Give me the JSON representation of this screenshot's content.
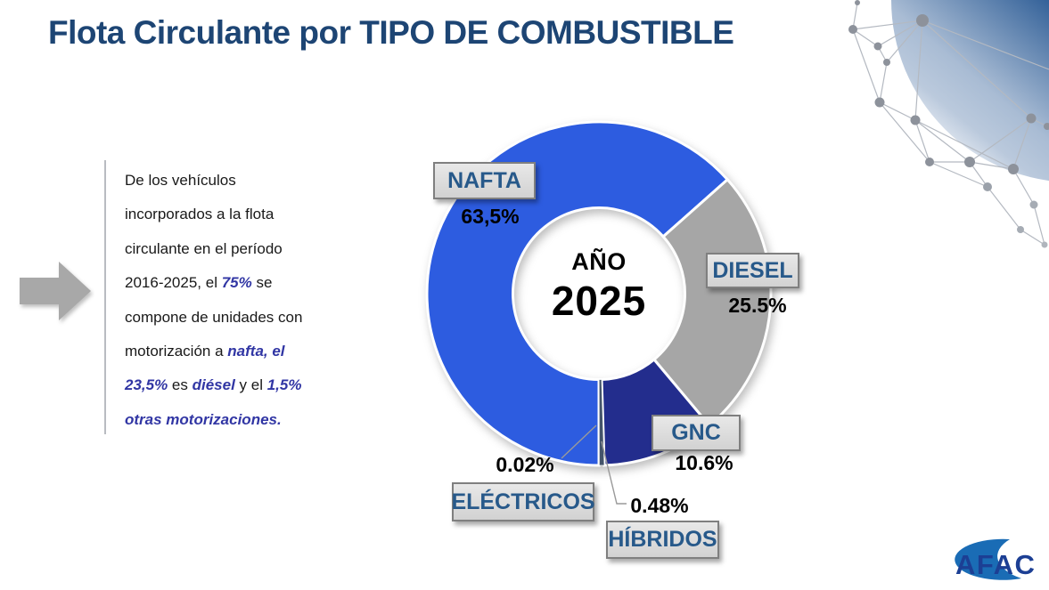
{
  "title": "Flota Circulante por TIPO DE COMBUSTIBLE",
  "note": {
    "runs": [
      {
        "t": "De los vehículos",
        "b": 0,
        "br": 1
      },
      {
        "t": "incorporados a la flota",
        "b": 0,
        "br": 1
      },
      {
        "t": "circulante en el período",
        "b": 0,
        "br": 1
      },
      {
        "t": "2016-2025, el ",
        "b": 0
      },
      {
        "t": "75%",
        "b": 1
      },
      {
        "t": " se",
        "b": 0,
        "br": 1
      },
      {
        "t": "compone de unidades con",
        "b": 0,
        "br": 1
      },
      {
        "t": "motorización a ",
        "b": 0
      },
      {
        "t": "nafta, el",
        "b": 1,
        "br": 1
      },
      {
        "t": "23,5%",
        "b": 1
      },
      {
        "t": " es ",
        "b": 0
      },
      {
        "t": "diésel",
        "b": 1
      },
      {
        "t": " y el ",
        "b": 0
      },
      {
        "t": "1,5%",
        "b": 1,
        "br": 1
      },
      {
        "t": "otras motorizaciones.",
        "b": 1
      }
    ]
  },
  "chart_data": {
    "type": "pie",
    "subtype": "donut",
    "title": "Flota Circulante por TIPO DE COMBUSTIBLE",
    "hole_label": [
      "AÑO",
      "2025"
    ],
    "labels": [
      "NAFTA",
      "DIESEL",
      "GNC",
      "HÍBRIDOS",
      "ELÉCTRICOS"
    ],
    "values": [
      63.5,
      25.5,
      10.6,
      0.48,
      0.02
    ],
    "value_labels": [
      "63,5%",
      "25.5%",
      "10.6%",
      "0.48%",
      "0.02%"
    ],
    "colors": [
      "#2d5ce0",
      "#a6a6a6",
      "#232d8d",
      "#44546a",
      "#9dc3e6"
    ],
    "start_angle_deg": 180,
    "direction": "clockwise",
    "inner_radius_ratio": 0.5,
    "legend": "none",
    "grid": false
  },
  "icons": {
    "arrow": "right-block-arrow",
    "globe": "network-globe-plexus",
    "swoosh": "crescent-swoosh"
  },
  "logo": {
    "text": "AFAC"
  },
  "colors": {
    "title": "#1d4574",
    "note_highlight": "#3136a4",
    "tag_text": "#27598a",
    "tag_fill": "#d9d9d9",
    "tag_border": "#7f7f7f",
    "logo_text": "#1c3f94",
    "logo_swoosh": "#1a6cb5"
  }
}
